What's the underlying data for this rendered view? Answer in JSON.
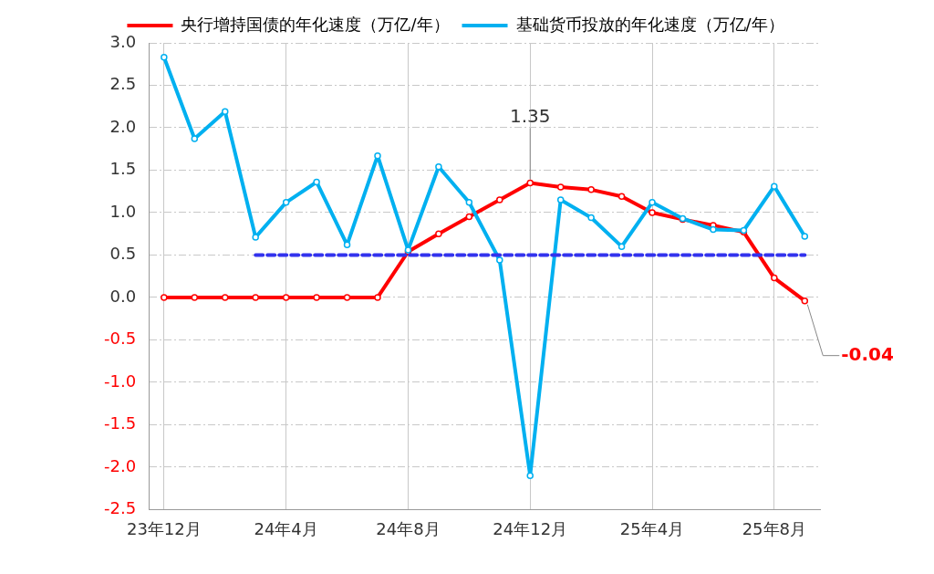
{
  "chart_data": {
    "type": "line",
    "categories": [
      "23年12月",
      null,
      null,
      null,
      "24年4月",
      null,
      null,
      null,
      "24年8月",
      null,
      null,
      null,
      "24年12月",
      null,
      null,
      null,
      "25年4月",
      null,
      null,
      null,
      "25年8月",
      null
    ],
    "series": [
      {
        "name": "央行增持国债的年化速度（万亿/年）",
        "color": "#ff0000",
        "values": [
          0,
          0,
          0,
          0,
          0,
          0,
          0,
          0,
          0.54,
          0.75,
          0.95,
          1.15,
          1.35,
          1.3,
          1.27,
          1.19,
          1.0,
          0.92,
          0.85,
          0.77,
          0.23,
          -0.04
        ],
        "value_labels": [
          null,
          null,
          null,
          null,
          null,
          null,
          null,
          null,
          null,
          null,
          null,
          null,
          "1.35",
          null,
          null,
          null,
          null,
          null,
          null,
          null,
          null,
          "-0.04"
        ]
      },
      {
        "name": "基础货币投放的年化速度（万亿/年）",
        "color": "#00b0f0",
        "values": [
          2.83,
          1.87,
          2.19,
          0.71,
          1.12,
          1.36,
          0.62,
          1.67,
          0.56,
          1.54,
          1.12,
          0.44,
          -2.1,
          1.15,
          0.94,
          0.6,
          1.12,
          0.93,
          0.8,
          0.79,
          1.31,
          0.72
        ]
      },
      {
        "color": "#3333ee",
        "line_style": "dashed",
        "marker": "none",
        "values": [
          null,
          null,
          null,
          0.5,
          0.5,
          0.5,
          0.5,
          0.5,
          0.5,
          0.5,
          0.5,
          0.5,
          0.5,
          0.5,
          0.5,
          0.5,
          0.5,
          0.5,
          0.5,
          0.5,
          0.5,
          0.5
        ]
      }
    ],
    "ylim": [
      -2.5,
      3.0
    ],
    "yticks": [
      {
        "value": -2.5,
        "label": "-2.5"
      },
      {
        "value": -2,
        "label": "-2.0"
      },
      {
        "value": -1.5,
        "label": "-1.5"
      },
      {
        "value": -1,
        "label": "-1.0"
      },
      {
        "value": -0.5,
        "label": "-0.5"
      },
      {
        "value": 0,
        "label": "0.0"
      },
      {
        "value": 0.5,
        "label": "0.5"
      },
      {
        "value": 1,
        "label": "1.0"
      },
      {
        "value": 1.5,
        "label": "1.5"
      },
      {
        "value": 2,
        "label": "2.0"
      },
      {
        "value": 2.5,
        "label": "2.5"
      },
      {
        "value": 3,
        "label": "3.0"
      }
    ],
    "grid": true,
    "legend": "top",
    "marker": "circle",
    "line_style": "solid"
  }
}
